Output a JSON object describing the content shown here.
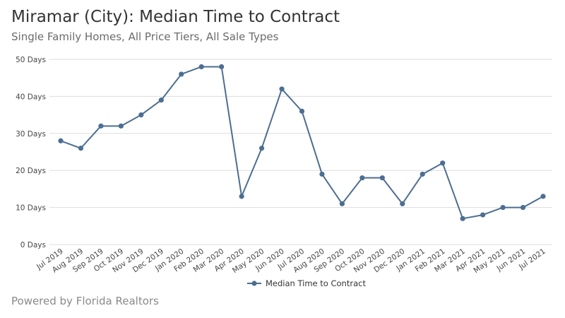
{
  "header": {
    "title": "Miramar (City): Median Time to Contract",
    "subtitle": "Single Family Homes, All Price Tiers, All Sale Types"
  },
  "footer": {
    "text": "Powered by Florida Realtors"
  },
  "colors": {
    "series": "#4c6e91",
    "grid": "#dddddd",
    "axis_text": "#444444"
  },
  "chart_data": {
    "type": "line",
    "title": "Miramar (City): Median Time to Contract",
    "subtitle": "Single Family Homes, All Price Tiers, All Sale Types",
    "xlabel": "",
    "ylabel": "",
    "ylim": [
      0,
      50
    ],
    "yticks": [
      0,
      10,
      20,
      30,
      40,
      50
    ],
    "ytick_labels": [
      "0 Days",
      "10 Days",
      "20 Days",
      "30 Days",
      "40 Days",
      "50 Days"
    ],
    "grid": "horizontal",
    "legend_position": "bottom-center",
    "categories": [
      "Jul 2019",
      "Aug 2019",
      "Sep 2019",
      "Oct 2019",
      "Nov 2019",
      "Dec 2019",
      "Jan 2020",
      "Feb 2020",
      "Mar 2020",
      "Apr 2020",
      "May 2020",
      "Jun 2020",
      "Jul 2020",
      "Aug 2020",
      "Sep 2020",
      "Oct 2020",
      "Nov 2020",
      "Dec 2020",
      "Jan 2021",
      "Feb 2021",
      "Mar 2021",
      "Apr 2021",
      "May 2021",
      "Jun 2021",
      "Jul 2021"
    ],
    "series": [
      {
        "name": "Median Time to Contract",
        "values": [
          28,
          26,
          32,
          32,
          35,
          39,
          46,
          48,
          48,
          13,
          26,
          42,
          36,
          19,
          11,
          18,
          18,
          11,
          19,
          22,
          7,
          8,
          10,
          10,
          13
        ]
      }
    ]
  }
}
